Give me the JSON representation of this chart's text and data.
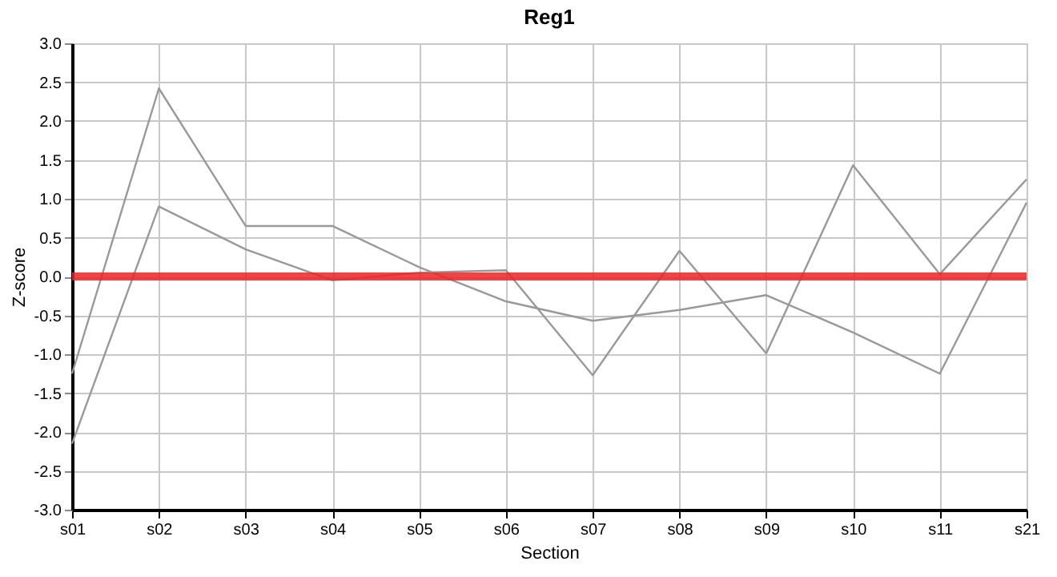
{
  "chart_data": {
    "type": "line",
    "title": "Reg1",
    "xlabel": "Section",
    "ylabel": "Z-score",
    "categories": [
      "s01",
      "s02",
      "s03",
      "s04",
      "s05",
      "s06",
      "s07",
      "s08",
      "s09",
      "s10",
      "s11",
      "s21"
    ],
    "series": [
      {
        "color": "#999999",
        "values": [
          -1.25,
          2.42,
          0.65,
          0.65,
          0.12,
          -0.32,
          -0.57,
          -0.43,
          -0.24,
          -0.72,
          -1.25,
          0.95
        ]
      },
      {
        "color": "#999999",
        "values": [
          -2.15,
          0.9,
          0.35,
          -0.05,
          0.05,
          0.08,
          -1.27,
          0.33,
          -0.99,
          1.43,
          0.03,
          1.25
        ]
      }
    ],
    "ylim": [
      -3,
      3
    ],
    "yticks": [
      {
        "value": -3,
        "label": "-3.0"
      },
      {
        "value": -2.5,
        "label": "-2.5"
      },
      {
        "value": -2,
        "label": "-2.0"
      },
      {
        "value": -1.5,
        "label": "-1.5"
      },
      {
        "value": -1,
        "label": "-1.0"
      },
      {
        "value": -0.5,
        "label": "-0.5"
      },
      {
        "value": 0,
        "label": "0.0"
      },
      {
        "value": 0.5,
        "label": "0.5"
      },
      {
        "value": 1,
        "label": "1.0"
      },
      {
        "value": 1.5,
        "label": "1.5"
      },
      {
        "value": 2,
        "label": "2.0"
      },
      {
        "value": 2.5,
        "label": "2.5"
      },
      {
        "value": 3,
        "label": "3.0"
      }
    ],
    "ref_lines": [
      {
        "axis": "y",
        "value": 0,
        "color": "#ee2222"
      }
    ],
    "grid": true,
    "marker": "none",
    "line_style": "solid"
  }
}
